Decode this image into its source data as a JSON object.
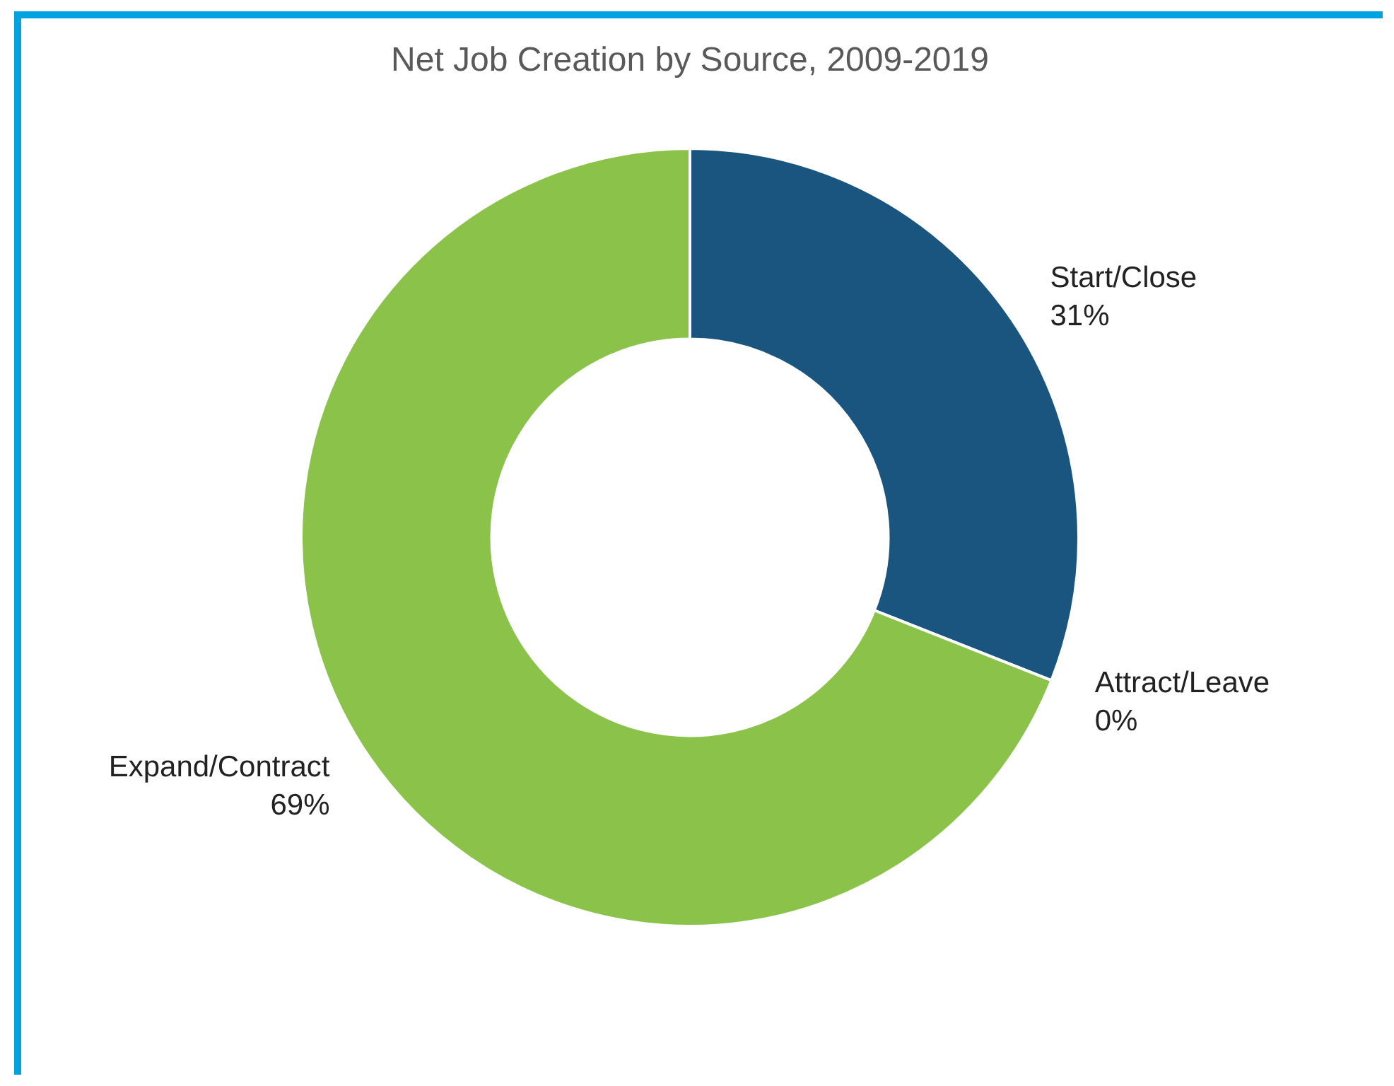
{
  "chart_data": {
    "type": "donut",
    "title": "Net Job Creation by Source, 2009-2019",
    "categories": [
      "Start/Close",
      "Attract/Leave",
      "Expand/Contract"
    ],
    "values": [
      31,
      0,
      69
    ],
    "colors": [
      "#1a557f",
      null,
      "#8bc34a"
    ],
    "value_labels": [
      "31%",
      "0%",
      "69%"
    ]
  }
}
